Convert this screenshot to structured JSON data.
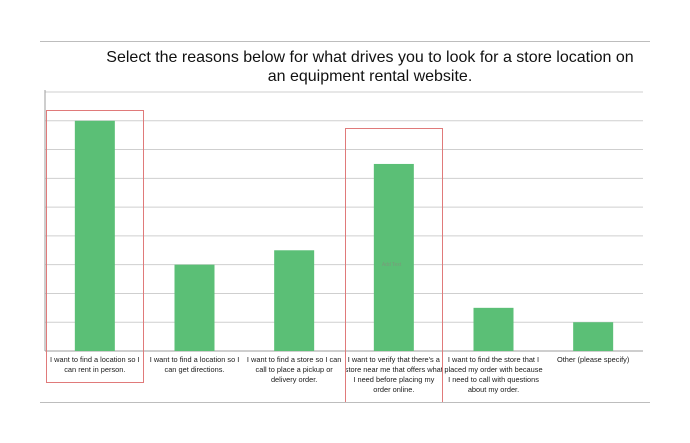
{
  "header": {
    "title": "Select the reasons below for what drives you to look for a store location on an equipment rental website."
  },
  "chart_data": {
    "type": "bar",
    "title": "Select the reasons below for what drives you to look for a store location on an equipment rental website.",
    "categories": [
      "I want to find a location so I can rent in person.",
      "I want to find a location so I can get directions.",
      "I want to find a store so I can call to place a pickup or delivery order.",
      "I want to verify that there's a store near me that offers what I need before placing my order online.",
      "I want to find the store that I placed my order with because I need to call with questions about my order.",
      "Other (please specify)"
    ],
    "values": [
      8,
      3,
      3.5,
      6.5,
      1.5,
      1
    ],
    "ylim": [
      0,
      9
    ],
    "grid": true,
    "bar_color": "#5bbf76",
    "highlighted_categories": [
      0,
      3
    ],
    "highlight_color": "#e07a7a",
    "annotation": "Add Text"
  }
}
